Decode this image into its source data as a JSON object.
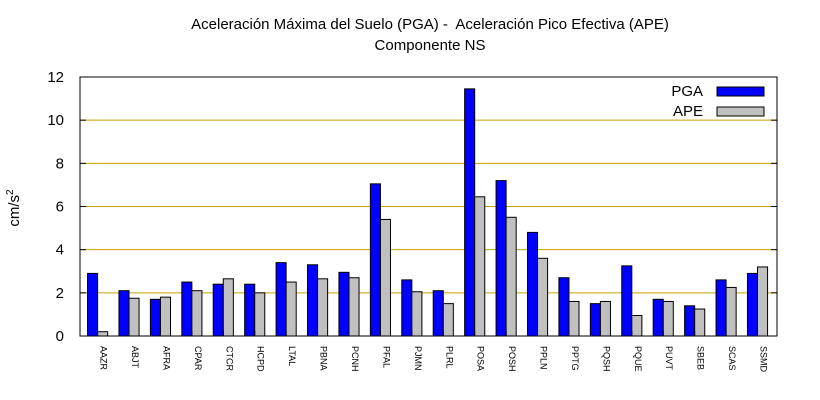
{
  "chart_data": {
    "type": "bar",
    "title": "Aceleración Máxima del Suelo (PGA) -  Aceleración Pico Efectiva (APE)",
    "subtitle": "Componente NS",
    "xlabel": "",
    "ylabel": "cm/s",
    "ylabel_superscript": "2",
    "ylim": [
      0,
      12
    ],
    "yticks": [
      0,
      2,
      4,
      6,
      8,
      10,
      12
    ],
    "grid": true,
    "legend_position": "top-right",
    "categories": [
      "AAZR",
      "ABJT",
      "AFRA",
      "CPAR",
      "CTCR",
      "HCPD",
      "LTAL",
      "PBNA",
      "PCNH",
      "PFAL",
      "PJMN",
      "PLRL",
      "POSA",
      "POSH",
      "PPLN",
      "PPTG",
      "PQSH",
      "PQUE",
      "PUVT",
      "SBEB",
      "SCAS",
      "SSMD"
    ],
    "series": [
      {
        "name": "PGA",
        "color": "#0000ff",
        "values": [
          2.9,
          2.1,
          1.7,
          2.5,
          2.4,
          2.4,
          3.4,
          3.3,
          2.95,
          7.05,
          2.6,
          2.1,
          11.45,
          7.2,
          4.8,
          2.7,
          1.5,
          3.25,
          1.7,
          1.4,
          2.6,
          2.9
        ]
      },
      {
        "name": "APE",
        "color": "#c0c0c0",
        "values": [
          0.2,
          1.75,
          1.8,
          2.1,
          2.65,
          2.0,
          2.5,
          2.65,
          2.7,
          5.4,
          2.05,
          1.5,
          6.45,
          5.5,
          3.6,
          1.6,
          1.6,
          0.95,
          1.6,
          1.25,
          2.25,
          3.2
        ]
      }
    ]
  }
}
